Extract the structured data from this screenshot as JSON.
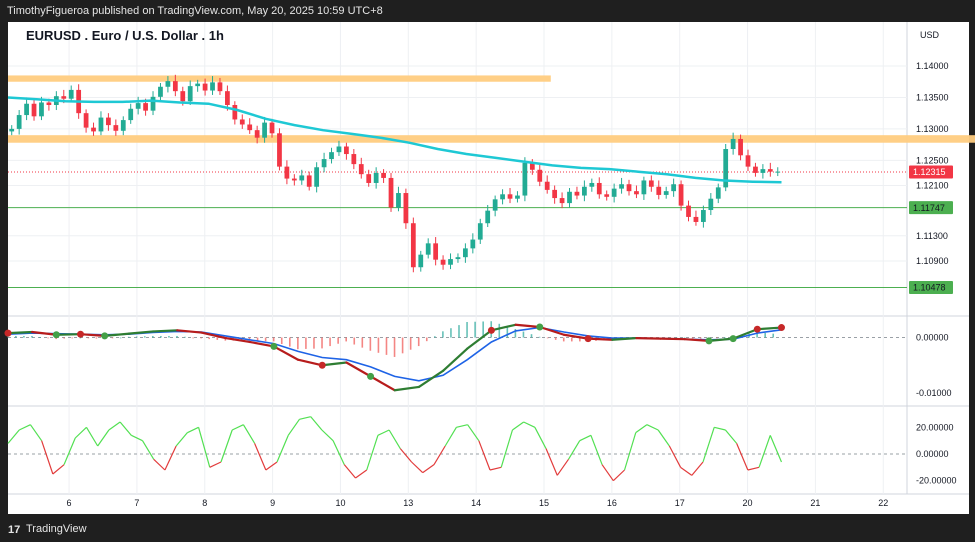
{
  "header": {
    "publish_line": "TimothyFigueroa published on TradingView.com, May 20, 2025 10:59 UTC+8"
  },
  "footer": {
    "brand": "TradingView",
    "logo_glyph": "17"
  },
  "colors": {
    "up": "#22ab94",
    "down": "#f23645",
    "ma": "#1ec8d4",
    "zone": "#ffcc80",
    "level": "#4caf50",
    "macd_fast": "#2e7d32",
    "macd_slow": "#1e63e6"
  },
  "chart_data": {
    "type": "candlestick",
    "title": "EURUSD . Euro / U.S. Dollar . 1h",
    "currency": "USD",
    "price_axis": {
      "ticks": [
        "1.14000",
        "1.13500",
        "1.13000",
        "1.12500",
        "1.12100",
        "1.11300",
        "1.10900"
      ],
      "tick_values": [
        1.14,
        1.135,
        1.13,
        1.125,
        1.121,
        1.113,
        1.109
      ],
      "ylim": [
        1.1012,
        1.1435
      ]
    },
    "last_price": "1.12315",
    "last_price_value": 1.12315,
    "support_levels": [
      {
        "label": "1.11747",
        "value": 1.11747
      },
      {
        "label": "1.10478",
        "value": 1.10478
      }
    ],
    "zones": [
      {
        "from": 1.1375,
        "to": 1.1385,
        "x_end": 8.0
      },
      {
        "from": 1.1278,
        "to": 1.129,
        "x_end": 15.5
      }
    ],
    "x_axis": {
      "labels": [
        "6",
        "7",
        "8",
        "9",
        "10",
        "13",
        "14",
        "15",
        "16",
        "17",
        "20",
        "21",
        "22"
      ],
      "positions": [
        0.9,
        1.9,
        2.9,
        3.9,
        4.9,
        5.9,
        6.9,
        7.9,
        8.9,
        9.9,
        10.9,
        11.9,
        12.9
      ],
      "xlim": [
        0,
        13.25
      ]
    },
    "price_closes": [
      1.13,
      1.1322,
      1.134,
      1.132,
      1.1342,
      1.1338,
      1.1352,
      1.1348,
      1.1362,
      1.1325,
      1.1302,
      1.1296,
      1.1318,
      1.1306,
      1.1297,
      1.1314,
      1.1332,
      1.1341,
      1.1329,
      1.1351,
      1.1367,
      1.1376,
      1.136,
      1.1344,
      1.1368,
      1.1372,
      1.1361,
      1.1374,
      1.136,
      1.1338,
      1.1315,
      1.1307,
      1.1298,
      1.1286,
      1.131,
      1.1293,
      1.124,
      1.1221,
      1.1218,
      1.1226,
      1.1208,
      1.1239,
      1.1252,
      1.1263,
      1.1272,
      1.126,
      1.1244,
      1.1228,
      1.1214,
      1.123,
      1.1222,
      1.1175,
      1.1198,
      1.115,
      1.108,
      1.11,
      1.1118,
      1.1092,
      1.1084,
      1.1093,
      1.1096,
      1.111,
      1.1124,
      1.115,
      1.117,
      1.1188,
      1.1196,
      1.1189,
      1.1194,
      1.1246,
      1.1235,
      1.1216,
      1.1203,
      1.119,
      1.1182,
      1.12,
      1.1194,
      1.1208,
      1.1214,
      1.1196,
      1.1192,
      1.1205,
      1.1212,
      1.1201,
      1.1196,
      1.1218,
      1.1208,
      1.1195,
      1.1201,
      1.1212,
      1.1178,
      1.116,
      1.1152,
      1.1171,
      1.1189,
      1.1207,
      1.1268,
      1.1284,
      1.1258,
      1.124,
      1.123,
      1.1236,
      1.1232,
      1.1232
    ],
    "ma_values": [
      1.135,
      1.1347,
      1.1344,
      1.1343,
      1.1343,
      1.1345,
      1.1342,
      1.134,
      1.133,
      1.1316,
      1.1306,
      1.1298,
      1.1292,
      1.1286,
      1.1278,
      1.1268,
      1.126,
      1.1254,
      1.1248,
      1.1242,
      1.1238,
      1.1236,
      1.1232,
      1.1228,
      1.1222,
      1.1218,
      1.1216,
      1.1215
    ],
    "macd": {
      "ylim": [
        -0.0118,
        0.0028
      ],
      "ticks": [
        "0.00000",
        "-0.01000"
      ],
      "tick_values": [
        0.0,
        -0.01
      ],
      "fast": [
        0.0008,
        0.001,
        0.0005,
        0.0006,
        0.0003,
        0.0007,
        0.0011,
        0.0013,
        0.0009,
        -0.0001,
        -0.0008,
        -0.0016,
        -0.004,
        -0.005,
        -0.0045,
        -0.007,
        -0.0095,
        -0.0089,
        -0.006,
        -0.002,
        0.0013,
        0.0023,
        0.0019,
        0.0005,
        -0.0002,
        -0.0004,
        -0.0001,
        -0.0002,
        -0.0003,
        -0.0006,
        -0.0002,
        0.0015,
        0.0018
      ],
      "slow": [
        0.0006,
        0.0008,
        0.0007,
        0.0006,
        0.0005,
        0.0006,
        0.0009,
        0.0011,
        0.001,
        0.0003,
        -0.0004,
        -0.0011,
        -0.0025,
        -0.0036,
        -0.004,
        -0.0053,
        -0.007,
        -0.0078,
        -0.0068,
        -0.004,
        -0.0008,
        0.0012,
        0.0018,
        0.001,
        0.0003,
        -0.0001,
        -0.0001,
        -0.0002,
        -0.0003,
        -0.0004,
        -0.0003,
        0.0008,
        0.0014
      ],
      "crosses_up": [
        2,
        4,
        11,
        15,
        22,
        29,
        30
      ],
      "crosses_down": [
        0,
        3,
        13,
        20,
        24,
        31,
        32
      ]
    },
    "oscillator": {
      "ylim": [
        -27,
        33
      ],
      "ticks": [
        "20.00000",
        "0.00000",
        "-20.00000"
      ],
      "tick_values": [
        20,
        0,
        -20
      ],
      "values": [
        8,
        18,
        22,
        10,
        -15,
        -8,
        12,
        20,
        6,
        18,
        24,
        14,
        10,
        -4,
        -12,
        6,
        16,
        20,
        -10,
        -6,
        18,
        22,
        8,
        -12,
        -6,
        14,
        26,
        28,
        18,
        10,
        -8,
        -18,
        -12,
        14,
        18,
        4,
        -6,
        -14,
        -8,
        6,
        20,
        22,
        10,
        -12,
        -10,
        18,
        24,
        20,
        4,
        -16,
        -4,
        10,
        14,
        -8,
        -20,
        -12,
        16,
        22,
        18,
        6,
        -10,
        -16,
        -6,
        20,
        18,
        8,
        -12,
        -10,
        14,
        -6
      ]
    }
  }
}
